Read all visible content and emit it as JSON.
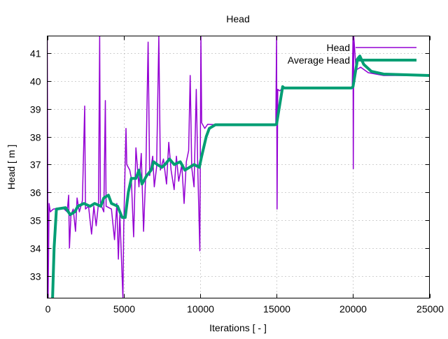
{
  "chart_data": {
    "type": "line",
    "title": "Head",
    "xlabel": "Iterations [ - ]",
    "ylabel": "Head [ m ]",
    "xlim": [
      0,
      25000
    ],
    "ylim": [
      32.2,
      41.62
    ],
    "xticks": [
      0,
      5000,
      10000,
      15000,
      20000,
      25000
    ],
    "yticks": [
      33,
      34,
      35,
      36,
      37,
      38,
      39,
      40,
      41
    ],
    "grid": true,
    "legend_position": "top-right",
    "series": [
      {
        "name": "Head",
        "color": "#9400d3",
        "points": [
          [
            0,
            41.6
          ],
          [
            60,
            32.2
          ],
          [
            120,
            35.6
          ],
          [
            200,
            35.3
          ],
          [
            400,
            35.4
          ],
          [
            1000,
            35.45
          ],
          [
            1300,
            35.3
          ],
          [
            1400,
            35.9
          ],
          [
            1450,
            34.0
          ],
          [
            1550,
            35.2
          ],
          [
            1700,
            35.4
          ],
          [
            1850,
            34.6
          ],
          [
            1950,
            35.8
          ],
          [
            2100,
            35.3
          ],
          [
            2300,
            35.7
          ],
          [
            2450,
            39.1
          ],
          [
            2500,
            35.4
          ],
          [
            2700,
            35.5
          ],
          [
            2900,
            34.5
          ],
          [
            3050,
            35.5
          ],
          [
            3200,
            34.8
          ],
          [
            3350,
            35.6
          ],
          [
            3430,
            41.6
          ],
          [
            3480,
            35.6
          ],
          [
            3700,
            35.3
          ],
          [
            3800,
            39.3
          ],
          [
            3850,
            35.5
          ],
          [
            4200,
            35.4
          ],
          [
            4400,
            34.3
          ],
          [
            4550,
            35.6
          ],
          [
            4650,
            33.6
          ],
          [
            4750,
            35.2
          ],
          [
            4950,
            32.2
          ],
          [
            5000,
            34.7
          ],
          [
            5150,
            38.3
          ],
          [
            5200,
            37.0
          ],
          [
            5400,
            36.8
          ],
          [
            5500,
            36.5
          ],
          [
            5650,
            34.4
          ],
          [
            5800,
            37.6
          ],
          [
            6000,
            36.2
          ],
          [
            6150,
            37.4
          ],
          [
            6300,
            34.6
          ],
          [
            6450,
            36.8
          ],
          [
            6600,
            41.4
          ],
          [
            6700,
            36.6
          ],
          [
            6900,
            37.3
          ],
          [
            7000,
            36.2
          ],
          [
            7150,
            36.9
          ],
          [
            7300,
            41.6
          ],
          [
            7400,
            36.8
          ],
          [
            7600,
            37.2
          ],
          [
            7800,
            36.3
          ],
          [
            7950,
            37.8
          ],
          [
            8100,
            36.8
          ],
          [
            8300,
            36.1
          ],
          [
            8450,
            37.3
          ],
          [
            8600,
            36.4
          ],
          [
            8800,
            37.0
          ],
          [
            8950,
            35.6
          ],
          [
            9100,
            37.1
          ],
          [
            9250,
            37.5
          ],
          [
            9350,
            40.2
          ],
          [
            9450,
            36.9
          ],
          [
            9600,
            36.2
          ],
          [
            9750,
            39.7
          ],
          [
            9850,
            36.8
          ],
          [
            9980,
            33.9
          ],
          [
            10050,
            41.6
          ],
          [
            10100,
            38.5
          ],
          [
            10300,
            38.3
          ],
          [
            10500,
            38.45
          ],
          [
            11000,
            38.43
          ],
          [
            14950,
            38.43
          ],
          [
            15000,
            41.6
          ],
          [
            15030,
            35.4
          ],
          [
            15080,
            39.7
          ],
          [
            15200,
            39.65
          ],
          [
            15500,
            39.78
          ],
          [
            19950,
            39.78
          ],
          [
            20000,
            41.6
          ],
          [
            20020,
            36.85
          ],
          [
            20050,
            41.6
          ],
          [
            20200,
            40.4
          ],
          [
            20500,
            40.5
          ],
          [
            21000,
            40.3
          ],
          [
            22000,
            40.2
          ],
          [
            25000,
            40.2
          ]
        ]
      },
      {
        "name": "Average Head",
        "color": "#009e73",
        "points": [
          [
            350,
            32.2
          ],
          [
            450,
            34.0
          ],
          [
            600,
            35.4
          ],
          [
            1200,
            35.45
          ],
          [
            1500,
            35.2
          ],
          [
            1800,
            35.3
          ],
          [
            2000,
            35.5
          ],
          [
            2400,
            35.6
          ],
          [
            2800,
            35.5
          ],
          [
            3100,
            35.6
          ],
          [
            3500,
            35.5
          ],
          [
            3700,
            35.8
          ],
          [
            4000,
            35.9
          ],
          [
            4200,
            35.6
          ],
          [
            4600,
            35.5
          ],
          [
            4900,
            35.1
          ],
          [
            5100,
            35.1
          ],
          [
            5300,
            36.0
          ],
          [
            5500,
            36.5
          ],
          [
            5800,
            36.5
          ],
          [
            6000,
            36.8
          ],
          [
            6200,
            36.3
          ],
          [
            6500,
            36.6
          ],
          [
            6800,
            36.8
          ],
          [
            6950,
            37.1
          ],
          [
            7200,
            37.0
          ],
          [
            7500,
            36.9
          ],
          [
            7700,
            37.0
          ],
          [
            8000,
            37.2
          ],
          [
            8300,
            37.0
          ],
          [
            8700,
            37.1
          ],
          [
            9000,
            36.8
          ],
          [
            9300,
            36.9
          ],
          [
            9600,
            37.0
          ],
          [
            9950,
            36.9
          ],
          [
            10100,
            37.3
          ],
          [
            10400,
            38.0
          ],
          [
            10600,
            38.3
          ],
          [
            11000,
            38.43
          ],
          [
            14900,
            38.43
          ],
          [
            15000,
            38.45
          ],
          [
            15400,
            39.8
          ],
          [
            15500,
            39.75
          ],
          [
            19900,
            39.75
          ],
          [
            20000,
            39.8
          ],
          [
            20300,
            40.8
          ],
          [
            20450,
            40.9
          ],
          [
            20700,
            40.6
          ],
          [
            21200,
            40.35
          ],
          [
            22000,
            40.25
          ],
          [
            25000,
            40.2
          ]
        ]
      }
    ]
  }
}
